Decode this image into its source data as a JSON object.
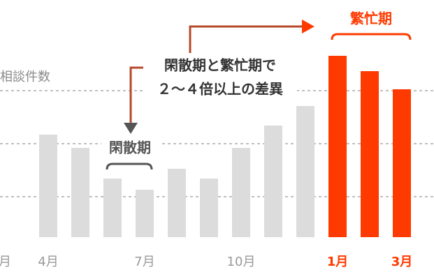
{
  "chart_data": {
    "type": "bar",
    "y_label": "相談件数",
    "categories": [
      "4月",
      null,
      null,
      "7月",
      null,
      null,
      "10月",
      null,
      null,
      "1月",
      null,
      "3月"
    ],
    "edge_label": "月",
    "values": [
      147,
      128,
      84,
      68,
      98,
      84,
      128,
      160,
      188,
      260,
      238,
      212
    ],
    "colors": [
      "#dcdcdc",
      "#dcdcdc",
      "#dcdcdc",
      "#dcdcdc",
      "#dcdcdc",
      "#dcdcdc",
      "#dcdcdc",
      "#dcdcdc",
      "#dcdcdc",
      "#ff3a00",
      "#ff3a00",
      "#ff3a00"
    ],
    "label_colors": [
      "#999999",
      null,
      null,
      "#999999",
      null,
      null,
      "#999999",
      null,
      null,
      "#ff3a00",
      null,
      "#ff3a00"
    ],
    "ylim": [
      0,
      300
    ],
    "grid_lines": [
      58,
      134,
      210
    ],
    "annotations": {
      "busy": "繁忙期",
      "quiet": "閑散期",
      "note_line1": "閑散期と繁忙期で",
      "note_line2": "２〜４倍以上の差異"
    }
  }
}
